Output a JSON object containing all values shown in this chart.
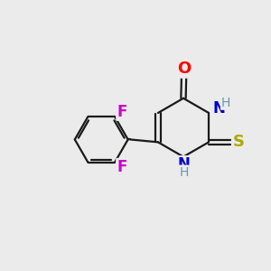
{
  "background_color": "#ebebeb",
  "bond_color": "#1a1a1a",
  "atom_colors": {
    "O": "#ff0000",
    "N": "#0000cc",
    "S": "#aaaa00",
    "F": "#cc00cc",
    "H": "#6699aa"
  },
  "figsize": [
    3.0,
    3.0
  ],
  "dpi": 100
}
